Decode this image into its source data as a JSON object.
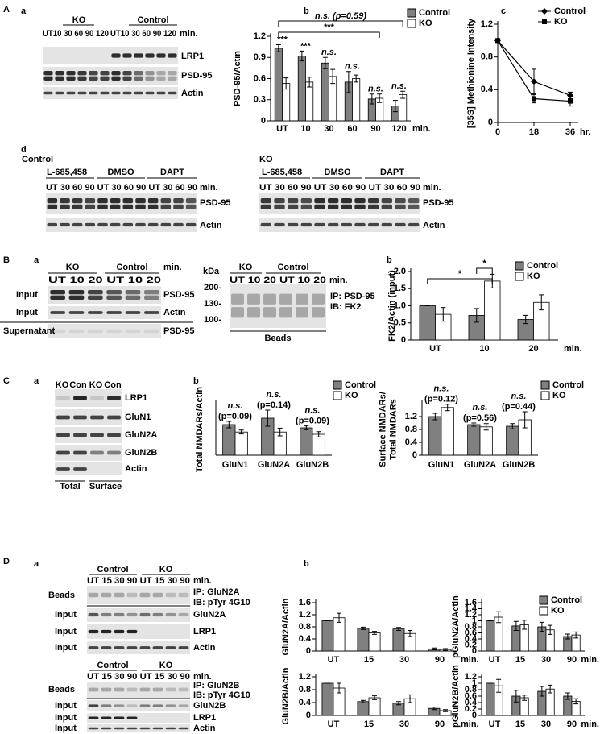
{
  "panel_labels": [
    "A",
    "a",
    "b",
    "c",
    "d",
    "B",
    "a",
    "b",
    "C",
    "a",
    "b",
    "D",
    "a",
    "b"
  ],
  "blots": {
    "A_a": [
      "KO",
      "Control",
      "UT10 30 60 90 120",
      "UT10 30 60 90 120",
      "min.",
      "LRP1",
      "PSD-95",
      "Actin"
    ],
    "A_d": [
      "Control",
      "L-685,458",
      "DMSO",
      "DAPT",
      "UT 30 60 90 UT 30 60 90 UT 30 60 90",
      "min.",
      "PSD-95",
      "Actin",
      "KO",
      "L-685,458",
      "DMSO",
      "DAPT",
      "UT 30 60 90 UT 30 60 90 UT 30 60 90",
      "min.",
      "PSD-95",
      "Actin"
    ],
    "B_a": [
      "KO",
      "Control",
      "UT 10 20 UT 10 20",
      "min.",
      "Input",
      "PSD-95",
      "Input",
      "Actin",
      "Supernatant",
      "PSD-95",
      "kDa",
      "KO",
      "Control",
      "UT 10 20 UT 10 20",
      "min.",
      "200-",
      "130-",
      "100-",
      "IP: PSD-95",
      "IB: FK2",
      "Beads"
    ],
    "C_a": [
      "KO",
      "Con",
      "KO",
      "Con",
      "LRP1",
      "GluN1",
      "GluN2A",
      "GluN2B",
      "Actin",
      "Total",
      "Surface"
    ],
    "D_a": [
      "Control",
      "KO",
      "UT 15 30 90 UT 15 30 90",
      "min.",
      "Beads",
      "IP: GluN2A",
      "IB: pTyr 4G10",
      "Input",
      "GluN2A",
      "Input",
      "LRP1",
      "Input",
      "Actin",
      "Control",
      "KO",
      "UT 15 30 90 UT 15 30 90",
      "min.",
      "Beads",
      "IP: GluN2B",
      "IB: pTyr 4G10",
      "Input",
      "GluN2B",
      "Input",
      "LRP1",
      "Input",
      "Actin"
    ]
  },
  "chart_data": [
    {
      "type": "bar",
      "y_label": [
        "PSD-95/Actin"
      ],
      "categories": [
        "UT",
        "10",
        "30",
        "60",
        "90",
        "120"
      ],
      "x_unit": "min.",
      "ylim": [
        0,
        1.2
      ],
      "yticks": [
        0,
        0.3,
        0.6,
        0.9,
        1.2
      ],
      "series": [
        {
          "name": "Control",
          "color": "#808080",
          "values": [
            1.03,
            0.92,
            0.82,
            0.55,
            0.31,
            0.21
          ],
          "errors": [
            0.05,
            0.07,
            0.08,
            0.15,
            0.07,
            0.08
          ]
        },
        {
          "name": "KO",
          "color": "#ffffff",
          "values": [
            0.53,
            0.55,
            0.63,
            0.6,
            0.32,
            0.37
          ],
          "errors": [
            0.08,
            0.07,
            0.1,
            0.05,
            0.06,
            0.05
          ]
        }
      ],
      "pair_labels": [
        "***",
        "***",
        "n.s.",
        "n.s.",
        "n.s.",
        "n.s."
      ],
      "brackets": [
        "n.s. (p=0.59)",
        "***"
      ]
    },
    {
      "type": "line",
      "y_label": [
        "[35S] Methionine Intensity"
      ],
      "x": [
        0,
        18,
        36
      ],
      "xlim": [
        0,
        40
      ],
      "xticks": [
        0,
        18,
        36
      ],
      "x_unit": "hr.",
      "ylim": [
        0,
        1.2
      ],
      "yticks": [
        0,
        0.4,
        0.8,
        1.2
      ],
      "series": [
        {
          "name": "Control",
          "color": "#000000",
          "marker": "diamond",
          "values": [
            1,
            0.5,
            0.33
          ],
          "errors": [
            0,
            0.15,
            0.04
          ]
        },
        {
          "name": "KO",
          "color": "#000000",
          "marker": "square",
          "values": [
            1,
            0.29,
            0.26
          ],
          "errors": [
            0,
            0.05,
            0.06
          ]
        }
      ]
    },
    {
      "type": "bar",
      "y_label": [
        "FK2/Actin (input)"
      ],
      "categories": [
        "UT",
        "10",
        "20"
      ],
      "x_unit": "min.",
      "ylim": [
        0,
        2
      ],
      "yticks": [
        0,
        0.5,
        {
          "value": 1,
          "label": "1.0"
        },
        1.5,
        {
          "value": 2,
          "label": "2.0"
        }
      ],
      "series": [
        {
          "name": "Control",
          "color": "#808080",
          "values": [
            1.0,
            0.72,
            0.6
          ],
          "errors": [
            0,
            0.2,
            0.12
          ]
        },
        {
          "name": "KO",
          "color": "#ffffff",
          "values": [
            0.75,
            1.72,
            1.1
          ],
          "errors": [
            0.2,
            0.2,
            0.22
          ]
        }
      ],
      "brackets": [
        "*",
        "*"
      ]
    },
    {
      "type": "bar",
      "y_label": [
        "Total NMDARs/Actin"
      ],
      "categories": [
        "GluN1",
        "GluN2A",
        "GluN2B"
      ],
      "ylim": [
        0,
        1.6
      ],
      "series": [
        {
          "name": "Control",
          "color": "#808080",
          "values": [
            0.95,
            1.15,
            0.85
          ],
          "errors": [
            0.1,
            0.25,
            0.06
          ]
        },
        {
          "name": "KO",
          "color": "#ffffff",
          "values": [
            0.72,
            0.72,
            0.65
          ],
          "errors": [
            0.06,
            0.12,
            0.08
          ]
        }
      ],
      "pair_labels": [
        [
          "n.s.",
          "(p=0.09)"
        ],
        [
          "n.s.",
          "(p=0.14)"
        ],
        [
          "n.s.",
          "(p=0.09)"
        ]
      ]
    },
    {
      "type": "bar",
      "y_label": [
        "Surface NMDARs/",
        "Total NMDARs"
      ],
      "categories": [
        "GluN1",
        "GluN2A",
        "GluN2B"
      ],
      "ylim": [
        0,
        1.6
      ],
      "yticks": [
        0,
        0.4,
        0.8,
        1.2
      ],
      "series": [
        {
          "name": "Control",
          "color": "#808080",
          "values": [
            1.2,
            0.95,
            0.9
          ],
          "errors": [
            0.1,
            0.05,
            0.08
          ]
        },
        {
          "name": "KO",
          "color": "#ffffff",
          "values": [
            1.48,
            0.88,
            1.1
          ],
          "errors": [
            0.1,
            0.1,
            0.25
          ]
        }
      ],
      "pair_labels": [
        [
          "n.s.",
          "(p=0.12)"
        ],
        [
          "n.s.",
          "(p=0.56)"
        ],
        [
          "n.s.",
          "(p=0.44)"
        ]
      ]
    },
    {
      "type": "bar",
      "y_label": [
        "GluN2A/Actin"
      ],
      "categories": [
        "UT",
        "15",
        "30",
        "90"
      ],
      "x_unit": "min.",
      "ylim": [
        0,
        1.6
      ],
      "yticks": [
        0,
        0.4,
        0.8,
        1.2,
        1.6
      ],
      "series": [
        {
          "color": "#808080",
          "values": [
            1.0,
            0.75,
            0.73,
            0.07
          ],
          "errors": [
            0,
            0.04,
            0.05,
            0.03
          ]
        },
        {
          "color": "#ffffff",
          "values": [
            1.1,
            0.6,
            0.58,
            0.05
          ],
          "errors": [
            0.15,
            0.05,
            0.1,
            0.03
          ]
        }
      ]
    },
    {
      "type": "bar",
      "y_label": [
        "pGluN2A/Actin"
      ],
      "categories": [
        "UT",
        "15",
        "30",
        "90"
      ],
      "x_unit": "min.",
      "ylim": [
        0,
        1.6
      ],
      "yticks": [
        0,
        0.2,
        0.4,
        0.6,
        0.8,
        1.0,
        1.2,
        1.4,
        1.6
      ],
      "series": [
        {
          "name": "Control",
          "color": "#808080",
          "values": [
            1.0,
            0.83,
            0.8,
            0.48
          ],
          "errors": [
            0,
            0.15,
            0.15,
            0.08
          ]
        },
        {
          "name": "KO",
          "color": "#ffffff",
          "values": [
            1.12,
            0.87,
            0.7,
            0.53
          ],
          "errors": [
            0.18,
            0.15,
            0.15,
            0.1
          ]
        }
      ]
    },
    {
      "type": "bar",
      "y_label": [
        "GluN2B/Actin"
      ],
      "categories": [
        "UT",
        "15",
        "30",
        "90"
      ],
      "x_unit": "min.",
      "ylim": [
        0,
        1.2
      ],
      "yticks": [
        0,
        0.4,
        0.8,
        1.2
      ],
      "series": [
        {
          "color": "#808080",
          "values": [
            1.0,
            0.43,
            0.38,
            0.22
          ],
          "errors": [
            0,
            0.04,
            0.05,
            0.04
          ]
        },
        {
          "color": "#ffffff",
          "values": [
            0.85,
            0.55,
            0.52,
            0.15
          ],
          "errors": [
            0.15,
            0.06,
            0.12,
            0.03
          ]
        }
      ]
    },
    {
      "type": "bar",
      "y_label": [
        "pGluN2B/Actin"
      ],
      "categories": [
        "UT",
        "15",
        "30",
        "90"
      ],
      "x_unit": "min.",
      "ylim": [
        0,
        1.2
      ],
      "yticks": [
        0,
        0.2,
        0.4,
        0.6,
        0.8,
        1.0,
        1.2
      ],
      "series": [
        {
          "color": "#808080",
          "values": [
            1.0,
            0.6,
            0.75,
            0.6
          ],
          "errors": [
            0,
            0.18,
            0.15,
            0.1
          ]
        },
        {
          "color": "#ffffff",
          "values": [
            0.92,
            0.55,
            0.82,
            0.44
          ],
          "errors": [
            0.2,
            0.08,
            0.12,
            0.08
          ]
        }
      ]
    }
  ]
}
